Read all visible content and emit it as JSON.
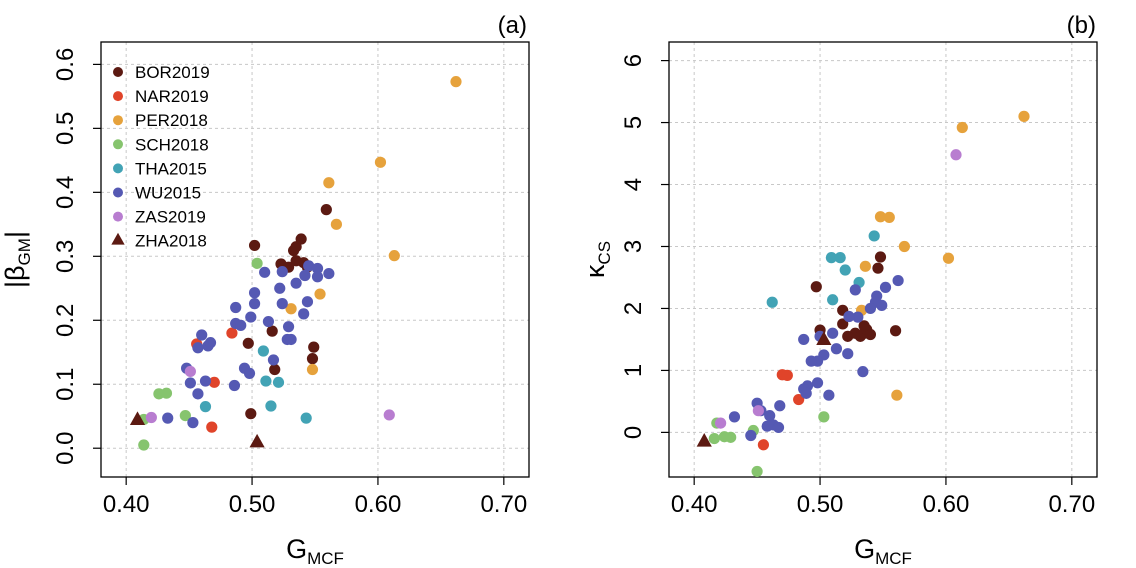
{
  "chart_data": [
    {
      "type": "scatter",
      "panel_label": "(a)",
      "xlabel": {
        "main": "G",
        "sub": "MCF"
      },
      "ylabel": {
        "main": "|β",
        "sub": "GM",
        "suffix": "|"
      },
      "xlim": [
        0.38,
        0.72
      ],
      "ylim": [
        -0.045,
        0.635
      ],
      "xticks": [
        0.4,
        0.5,
        0.6,
        0.7
      ],
      "xtick_labels": [
        "0.40",
        "0.50",
        "0.60",
        "0.70"
      ],
      "yticks": [
        0.0,
        0.1,
        0.2,
        0.3,
        0.4,
        0.5,
        0.6
      ],
      "ytick_labels": [
        "0.0",
        "0.1",
        "0.2",
        "0.3",
        "0.4",
        "0.5",
        "0.6"
      ],
      "grid": true,
      "legend_position": "top-left",
      "legend": [
        {
          "label": "BOR2019",
          "color": "#5c1a12",
          "marker": "circle"
        },
        {
          "label": "NAR2019",
          "color": "#e0442a",
          "marker": "circle"
        },
        {
          "label": "PER2018",
          "color": "#e6a23c",
          "marker": "circle"
        },
        {
          "label": "SCH2018",
          "color": "#86c46e",
          "marker": "circle"
        },
        {
          "label": "THA2015",
          "color": "#42a3b5",
          "marker": "circle"
        },
        {
          "label": "WU2015",
          "color": "#5559b3",
          "marker": "circle"
        },
        {
          "label": "ZAS2019",
          "color": "#b87dd0",
          "marker": "circle"
        },
        {
          "label": "ZHA2018",
          "color": "#5c1a12",
          "marker": "triangle"
        }
      ],
      "series": [
        {
          "name": "BOR2019",
          "points": [
            [
              0.502,
              0.317
            ],
            [
              0.523,
              0.288
            ],
            [
              0.529,
              0.283
            ],
            [
              0.533,
              0.309
            ],
            [
              0.535,
              0.315
            ],
            [
              0.539,
              0.327
            ],
            [
              0.535,
              0.293
            ],
            [
              0.541,
              0.29
            ],
            [
              0.544,
              0.283
            ],
            [
              0.559,
              0.373
            ],
            [
              0.497,
              0.164
            ],
            [
              0.516,
              0.183
            ],
            [
              0.518,
              0.123
            ],
            [
              0.548,
              0.14
            ],
            [
              0.549,
              0.158
            ],
            [
              0.499,
              0.054
            ]
          ]
        },
        {
          "name": "NAR2019",
          "points": [
            [
              0.456,
              0.163
            ],
            [
              0.47,
              0.103
            ],
            [
              0.468,
              0.033
            ],
            [
              0.484,
              0.18
            ]
          ]
        },
        {
          "name": "PER2018",
          "points": [
            [
              0.662,
              0.573
            ],
            [
              0.602,
              0.447
            ],
            [
              0.561,
              0.415
            ],
            [
              0.567,
              0.35
            ],
            [
              0.613,
              0.301
            ],
            [
              0.554,
              0.241
            ],
            [
              0.531,
              0.218
            ],
            [
              0.548,
              0.123
            ]
          ]
        },
        {
          "name": "SCH2018",
          "points": [
            [
              0.504,
              0.289
            ],
            [
              0.426,
              0.085
            ],
            [
              0.432,
              0.086
            ],
            [
              0.447,
              0.051
            ],
            [
              0.414,
              0.045
            ],
            [
              0.414,
              0.005
            ]
          ]
        },
        {
          "name": "THA2015",
          "points": [
            [
              0.509,
              0.152
            ],
            [
              0.511,
              0.105
            ],
            [
              0.521,
              0.103
            ],
            [
              0.515,
              0.066
            ],
            [
              0.463,
              0.065
            ],
            [
              0.543,
              0.047
            ]
          ]
        },
        {
          "name": "WU2015",
          "points": [
            [
              0.51,
              0.275
            ],
            [
              0.524,
              0.276
            ],
            [
              0.545,
              0.285
            ],
            [
              0.552,
              0.281
            ],
            [
              0.542,
              0.27
            ],
            [
              0.552,
              0.268
            ],
            [
              0.561,
              0.273
            ],
            [
              0.522,
              0.25
            ],
            [
              0.535,
              0.258
            ],
            [
              0.502,
              0.243
            ],
            [
              0.524,
              0.226
            ],
            [
              0.544,
              0.229
            ],
            [
              0.487,
              0.22
            ],
            [
              0.502,
              0.226
            ],
            [
              0.513,
              0.198
            ],
            [
              0.499,
              0.205
            ],
            [
              0.541,
              0.21
            ],
            [
              0.487,
              0.195
            ],
            [
              0.491,
              0.192
            ],
            [
              0.529,
              0.19
            ],
            [
              0.46,
              0.177
            ],
            [
              0.465,
              0.16
            ],
            [
              0.467,
              0.165
            ],
            [
              0.457,
              0.157
            ],
            [
              0.517,
              0.138
            ],
            [
              0.528,
              0.17
            ],
            [
              0.531,
              0.17
            ],
            [
              0.494,
              0.125
            ],
            [
              0.498,
              0.117
            ],
            [
              0.448,
              0.125
            ],
            [
              0.451,
              0.102
            ],
            [
              0.463,
              0.105
            ],
            [
              0.457,
              0.085
            ],
            [
              0.486,
              0.098
            ],
            [
              0.433,
              0.047
            ],
            [
              0.453,
              0.04
            ]
          ]
        },
        {
          "name": "ZAS2019",
          "points": [
            [
              0.451,
              0.12
            ],
            [
              0.42,
              0.048
            ],
            [
              0.609,
              0.052
            ]
          ]
        },
        {
          "name": "ZHA2018",
          "marker": "triangle",
          "points": [
            [
              0.409,
              0.045
            ],
            [
              0.504,
              0.01
            ]
          ]
        }
      ]
    },
    {
      "type": "scatter",
      "panel_label": "(b)",
      "xlabel": {
        "main": "G",
        "sub": "MCF"
      },
      "ylabel": {
        "main": "κ",
        "sub": "CS",
        "suffix": ""
      },
      "xlim": [
        0.38,
        0.72
      ],
      "ylim": [
        -0.72,
        6.3
      ],
      "xticks": [
        0.4,
        0.5,
        0.6,
        0.7
      ],
      "xtick_labels": [
        "0.40",
        "0.50",
        "0.60",
        "0.70"
      ],
      "yticks": [
        0,
        1,
        2,
        3,
        4,
        5,
        6
      ],
      "ytick_labels": [
        "0",
        "1",
        "2",
        "3",
        "4",
        "5",
        "6"
      ],
      "grid": true,
      "series": [
        {
          "name": "BOR2019",
          "points": [
            [
              0.548,
              2.83
            ],
            [
              0.546,
              2.65
            ],
            [
              0.497,
              2.35
            ],
            [
              0.518,
              1.97
            ],
            [
              0.518,
              1.75
            ],
            [
              0.528,
              1.6
            ],
            [
              0.532,
              1.55
            ],
            [
              0.535,
              1.6
            ],
            [
              0.537,
              1.66
            ],
            [
              0.54,
              1.58
            ],
            [
              0.535,
              1.72
            ],
            [
              0.522,
              1.55
            ],
            [
              0.56,
              1.64
            ],
            [
              0.5,
              1.65
            ]
          ]
        },
        {
          "name": "NAR2019",
          "points": [
            [
              0.47,
              0.93
            ],
            [
              0.474,
              0.92
            ],
            [
              0.483,
              0.53
            ],
            [
              0.455,
              -0.2
            ]
          ]
        },
        {
          "name": "PER2018",
          "points": [
            [
              0.662,
              5.1
            ],
            [
              0.613,
              4.92
            ],
            [
              0.548,
              3.48
            ],
            [
              0.555,
              3.47
            ],
            [
              0.567,
              3.0
            ],
            [
              0.536,
              2.68
            ],
            [
              0.602,
              2.81
            ],
            [
              0.533,
              1.97
            ],
            [
              0.561,
              0.6
            ]
          ]
        },
        {
          "name": "SCH2018",
          "points": [
            [
              0.418,
              0.15
            ],
            [
              0.424,
              -0.07
            ],
            [
              0.429,
              -0.08
            ],
            [
              0.416,
              -0.1
            ],
            [
              0.447,
              0.03
            ],
            [
              0.503,
              0.25
            ],
            [
              0.45,
              -0.63
            ]
          ]
        },
        {
          "name": "THA2015",
          "points": [
            [
              0.543,
              3.17
            ],
            [
              0.509,
              2.82
            ],
            [
              0.516,
              2.82
            ],
            [
              0.52,
              2.62
            ],
            [
              0.531,
              2.42
            ],
            [
              0.51,
              2.14
            ],
            [
              0.462,
              2.1
            ]
          ]
        },
        {
          "name": "WU2015",
          "points": [
            [
              0.562,
              2.45
            ],
            [
              0.552,
              2.34
            ],
            [
              0.545,
              2.2
            ],
            [
              0.544,
              2.1
            ],
            [
              0.549,
              2.05
            ],
            [
              0.528,
              2.3
            ],
            [
              0.54,
              2.0
            ],
            [
              0.53,
              1.86
            ],
            [
              0.523,
              1.87
            ],
            [
              0.51,
              1.6
            ],
            [
              0.5,
              1.55
            ],
            [
              0.513,
              1.35
            ],
            [
              0.503,
              1.25
            ],
            [
              0.498,
              1.15
            ],
            [
              0.487,
              1.5
            ],
            [
              0.493,
              1.15
            ],
            [
              0.49,
              0.75
            ],
            [
              0.487,
              0.7
            ],
            [
              0.489,
              0.63
            ],
            [
              0.498,
              0.8
            ],
            [
              0.507,
              0.6
            ],
            [
              0.522,
              1.27
            ],
            [
              0.534,
              0.98
            ],
            [
              0.468,
              0.43
            ],
            [
              0.46,
              0.27
            ],
            [
              0.458,
              0.1
            ],
            [
              0.463,
              0.12
            ],
            [
              0.467,
              0.08
            ],
            [
              0.45,
              0.47
            ],
            [
              0.445,
              -0.05
            ],
            [
              0.432,
              0.25
            ],
            [
              0.453,
              0.35
            ]
          ]
        },
        {
          "name": "ZAS2019",
          "points": [
            [
              0.608,
              4.48
            ],
            [
              0.421,
              0.15
            ],
            [
              0.451,
              0.35
            ]
          ]
        },
        {
          "name": "ZHA2018",
          "marker": "triangle",
          "points": [
            [
              0.408,
              -0.14
            ],
            [
              0.503,
              1.5
            ]
          ]
        }
      ]
    }
  ]
}
